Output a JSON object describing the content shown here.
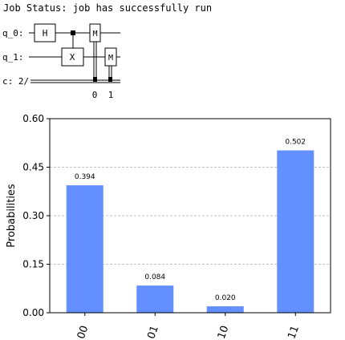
{
  "job_status": "Job Status: job has successfully run",
  "circuit": {
    "qubits": [
      "q_0:",
      "q_1:"
    ],
    "classical": "c: 2/",
    "gates": {
      "h": "H",
      "x": "X",
      "m0": "M",
      "m1": "M"
    },
    "bit_labels": [
      "0",
      "1"
    ]
  },
  "chart_data": {
    "type": "bar",
    "categories": [
      "00",
      "01",
      "10",
      "11"
    ],
    "values": [
      0.394,
      0.084,
      0.02,
      0.502
    ],
    "value_labels": [
      "0.394",
      "0.084",
      "0.020",
      "0.502"
    ],
    "ylabel": "Probabilities",
    "ylim": [
      0,
      0.6
    ],
    "yticks": [
      "0.00",
      "0.15",
      "0.30",
      "0.45",
      "0.60"
    ],
    "bar_color": "#648fff",
    "grid": true
  }
}
